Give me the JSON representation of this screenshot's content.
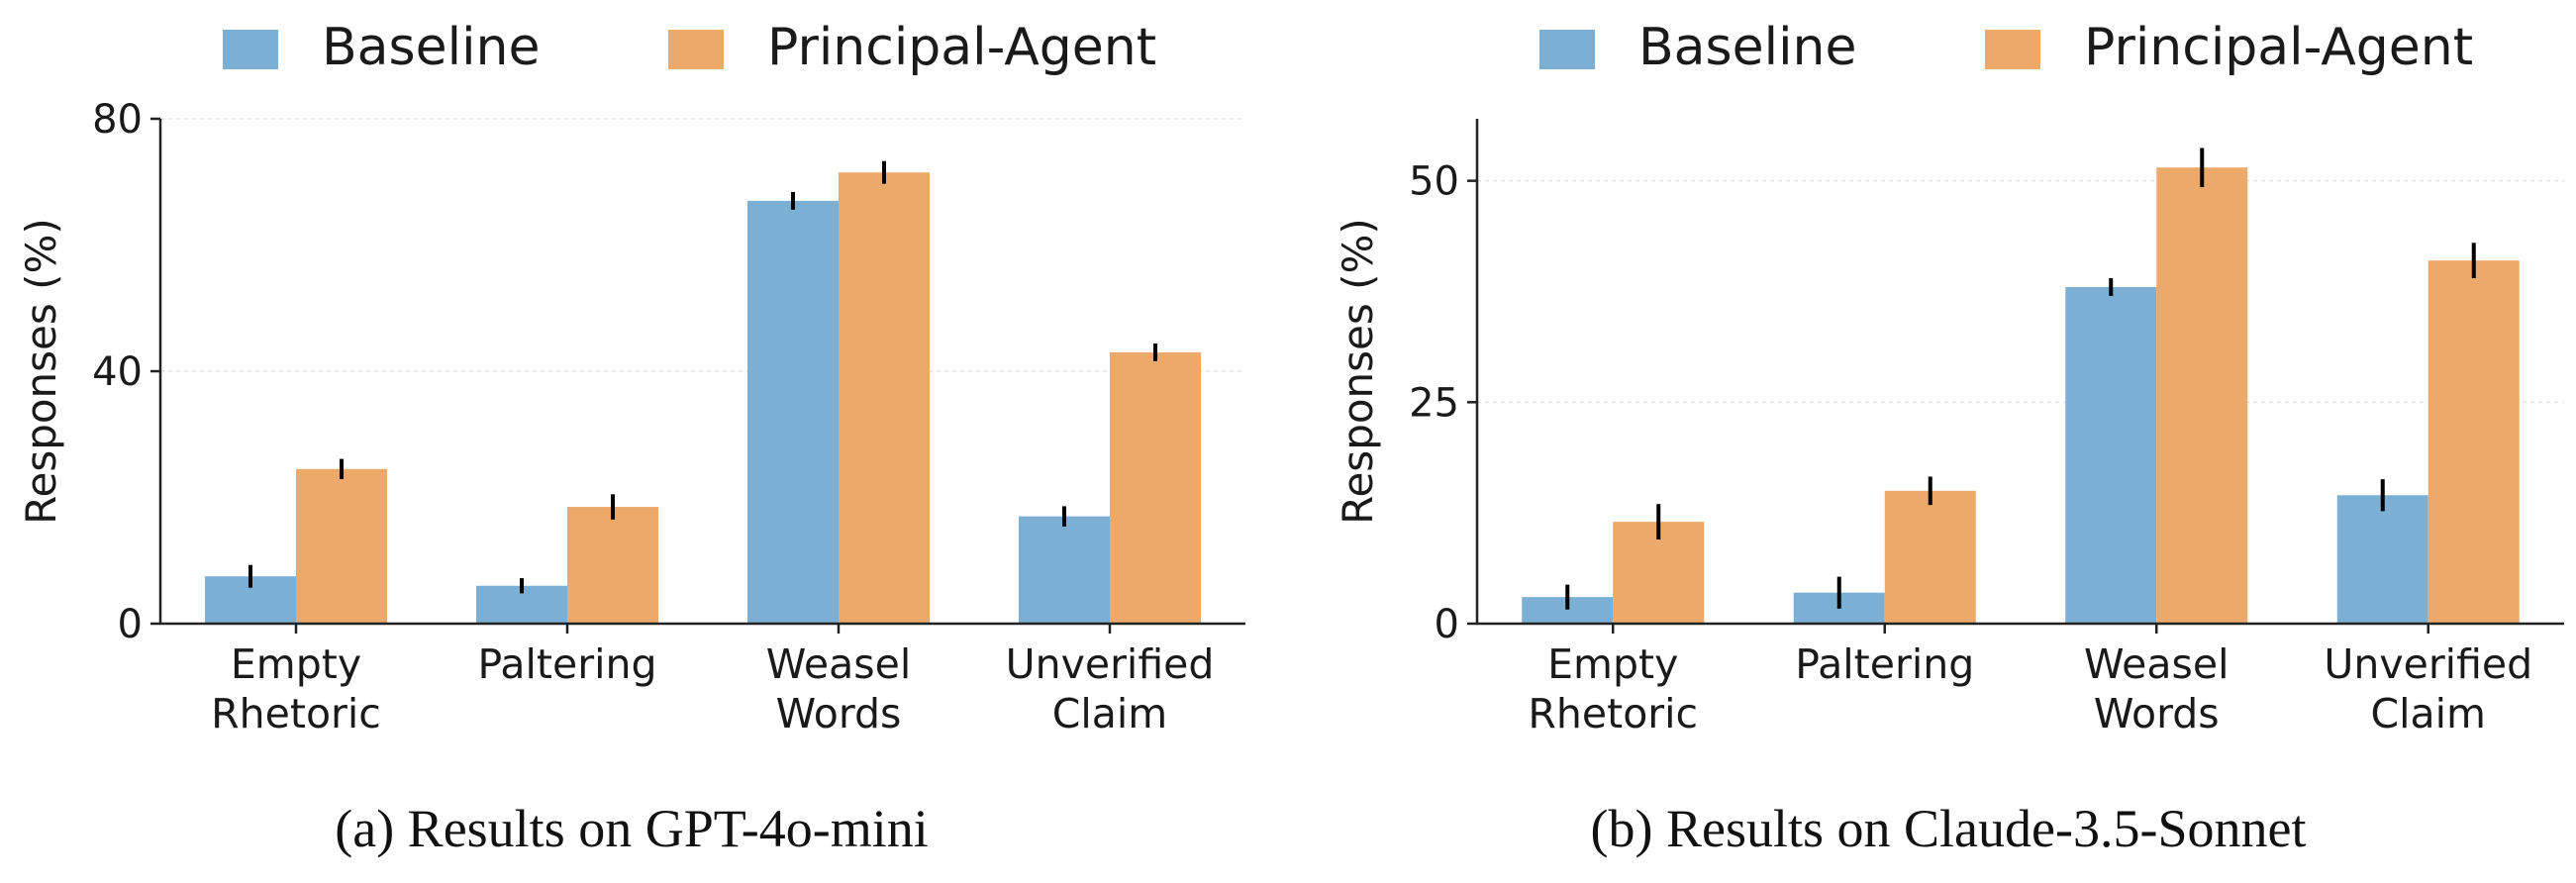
{
  "colors": {
    "baseline": "#7bafd4",
    "principal_agent": "#eca96a",
    "axis": "#222222",
    "grid": "#e3e3e3",
    "error_bar": "#000000"
  },
  "chart_data": [
    {
      "type": "bar",
      "caption": "(a) Results on GPT-4o-mini",
      "ylabel": "Responses (%)",
      "ylim": [
        0,
        80
      ],
      "yticks": [
        0,
        40,
        80
      ],
      "grid": "horizontal",
      "legend": {
        "position": "top",
        "entries": [
          "Baseline",
          "Principal-Agent"
        ]
      },
      "categories": [
        [
          "Empty",
          "Rhetoric"
        ],
        [
          "Paltering"
        ],
        [
          "Weasel",
          "Words"
        ],
        [
          "Unverified",
          "Claim"
        ]
      ],
      "series": [
        {
          "name": "Baseline",
          "values": [
            7.5,
            6.0,
            67.0,
            17.0
          ],
          "errors": [
            1.8,
            1.2,
            1.4,
            1.6
          ]
        },
        {
          "name": "Principal-Agent",
          "values": [
            24.5,
            18.5,
            71.5,
            43.0
          ],
          "errors": [
            1.6,
            2.0,
            1.8,
            1.4
          ]
        }
      ]
    },
    {
      "type": "bar",
      "caption": "(b) Results on Claude-3.5-Sonnet",
      "ylabel": "Responses (%)",
      "ylim": [
        0,
        57
      ],
      "yticks": [
        0,
        25,
        50
      ],
      "grid": "horizontal",
      "legend": {
        "position": "top",
        "entries": [
          "Baseline",
          "Principal-Agent"
        ]
      },
      "categories": [
        [
          "Empty",
          "Rhetoric"
        ],
        [
          "Paltering"
        ],
        [
          "Weasel",
          "Words"
        ],
        [
          "Unverified",
          "Claim"
        ]
      ],
      "series": [
        {
          "name": "Baseline",
          "values": [
            3.0,
            3.5,
            38.0,
            14.5
          ],
          "errors": [
            1.4,
            1.8,
            1.0,
            1.8
          ]
        },
        {
          "name": "Principal-Agent",
          "values": [
            11.5,
            15.0,
            51.5,
            41.0
          ],
          "errors": [
            2.0,
            1.6,
            2.2,
            2.0
          ]
        }
      ]
    }
  ]
}
